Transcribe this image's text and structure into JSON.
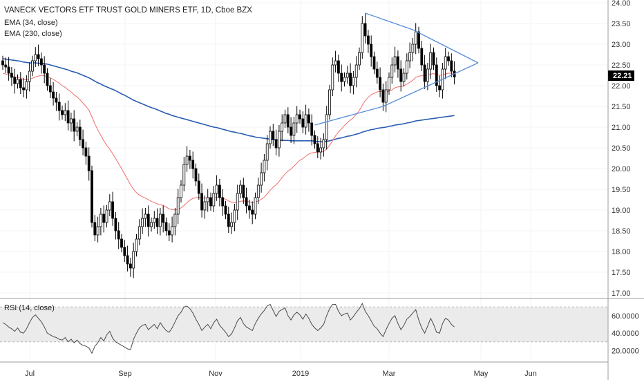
{
  "chart_title": "VANECK VECTORS ETF TRUST GOLD MINERS ETF, 1D, Cboe BZX",
  "legend": {
    "ema34": "EMA (34, close)",
    "ema230": "EMA (230, close)",
    "rsi": "RSI (14, close)"
  },
  "current_price": "22.21",
  "colors": {
    "candle": "#000000",
    "ema34": "#f26b6b",
    "ema230": "#2a5db0",
    "trendline": "#5b8fd6",
    "rsi_line": "#4a4a4a",
    "rsi_band": "#ebebeb",
    "grid": "#f0f3f7"
  },
  "chart_data": {
    "type": "candlestick",
    "x_labels": [
      "Jul",
      "Sep",
      "Nov",
      "2019",
      "Mar",
      "May",
      "Jun"
    ],
    "y_ticks": [
      "24.00",
      "23.50",
      "23.00",
      "22.50",
      "22.00",
      "21.50",
      "21.00",
      "20.50",
      "20.00",
      "19.50",
      "19.00",
      "18.50",
      "18.00",
      "17.50",
      "17.00"
    ],
    "ylim": [
      17.0,
      24.0
    ],
    "rsi_ticks": [
      "60.0000",
      "40.0000",
      "20.0000"
    ],
    "rsi_bands": [
      30,
      70
    ],
    "close": [
      22.5,
      22.45,
      22.3,
      22.2,
      22.05,
      22.15,
      21.95,
      21.9,
      22.1,
      22.35,
      22.6,
      22.75,
      22.65,
      22.5,
      22.3,
      22.0,
      21.85,
      21.7,
      21.6,
      21.4,
      21.3,
      21.4,
      21.1,
      21.2,
      20.9,
      21.0,
      20.7,
      20.5,
      20.3,
      19.95,
      18.7,
      18.4,
      18.6,
      18.9,
      18.7,
      19.0,
      19.2,
      18.8,
      18.5,
      18.3,
      18.1,
      17.9,
      17.7,
      17.6,
      18.0,
      18.3,
      18.6,
      18.8,
      18.9,
      18.6,
      18.7,
      18.8,
      18.6,
      18.9,
      18.7,
      18.5,
      18.4,
      18.6,
      18.9,
      19.3,
      19.6,
      20.1,
      20.3,
      20.2,
      20.0,
      19.7,
      19.4,
      19.0,
      19.2,
      19.3,
      19.1,
      19.4,
      19.6,
      19.3,
      19.1,
      18.9,
      18.6,
      18.7,
      19.0,
      19.4,
      19.6,
      19.3,
      19.1,
      19.0,
      18.9,
      19.3,
      19.6,
      19.9,
      20.2,
      20.6,
      20.9,
      20.7,
      20.5,
      20.9,
      21.1,
      21.3,
      21.0,
      20.8,
      21.1,
      21.3,
      21.2,
      21.0,
      21.3,
      21.1,
      20.8,
      20.6,
      20.4,
      20.5,
      20.7,
      21.3,
      21.9,
      22.5,
      22.6,
      22.3,
      22.1,
      22.2,
      22.3,
      22.0,
      22.2,
      22.5,
      22.8,
      23.5,
      23.2,
      23.0,
      22.7,
      22.4,
      22.2,
      21.9,
      21.6,
      21.9,
      22.2,
      22.5,
      22.7,
      22.4,
      22.1,
      22.3,
      22.6,
      22.8,
      23.0,
      23.3,
      22.9,
      22.5,
      22.1,
      22.4,
      22.8,
      22.5,
      22.0,
      21.9,
      22.4,
      22.7,
      22.6,
      22.35,
      22.21
    ],
    "ema34": [
      22.3,
      22.28,
      22.26,
      22.24,
      22.21,
      22.2,
      22.18,
      22.15,
      22.14,
      22.15,
      22.18,
      22.21,
      22.23,
      22.25,
      22.24,
      22.22,
      22.19,
      22.15,
      22.11,
      22.06,
      22.0,
      21.96,
      21.9,
      21.85,
      21.78,
      21.73,
      21.66,
      21.58,
      21.5,
      21.41,
      21.25,
      21.08,
      20.93,
      20.8,
      20.67,
      20.56,
      20.47,
      20.36,
      20.24,
      20.12,
      20.0,
      19.87,
      19.74,
      19.61,
      19.5,
      19.42,
      19.36,
      19.32,
      19.29,
      19.25,
      19.21,
      19.18,
      19.15,
      19.13,
      19.11,
      19.07,
      19.03,
      19.01,
      19.0,
      19.02,
      19.05,
      19.11,
      19.18,
      19.24,
      19.28,
      19.3,
      19.31,
      19.29,
      19.29,
      19.29,
      19.28,
      19.29,
      19.3,
      19.3,
      19.29,
      19.26,
      19.22,
      19.19,
      19.18,
      19.19,
      19.21,
      19.22,
      19.21,
      19.2,
      19.18,
      19.19,
      19.22,
      19.26,
      19.31,
      19.39,
      19.48,
      19.55,
      19.61,
      19.69,
      19.78,
      19.87,
      19.94,
      19.99,
      20.06,
      20.13,
      20.2,
      20.24,
      20.3,
      20.35,
      20.38,
      20.39,
      20.4,
      20.4,
      20.42,
      20.47,
      20.56,
      20.67,
      20.79,
      20.88,
      20.96,
      21.04,
      21.11,
      21.17,
      21.23,
      21.31,
      21.4,
      21.53,
      21.64,
      21.72,
      21.78,
      21.82,
      21.85,
      21.86,
      21.85,
      21.85,
      21.87,
      21.9,
      21.95,
      21.97,
      21.98,
      22.0,
      22.04,
      22.08,
      22.13,
      22.2,
      22.23,
      22.24,
      22.24,
      22.25,
      22.28,
      22.29,
      22.27,
      22.25,
      22.26,
      22.28,
      22.3,
      22.3,
      22.3
    ],
    "ema230": [
      22.65,
      22.64,
      22.63,
      22.62,
      22.61,
      22.6,
      22.59,
      22.57,
      22.56,
      22.55,
      22.55,
      22.55,
      22.54,
      22.54,
      22.53,
      22.52,
      22.5,
      22.48,
      22.46,
      22.44,
      22.42,
      22.4,
      22.38,
      22.35,
      22.33,
      22.31,
      22.28,
      22.25,
      22.22,
      22.19,
      22.15,
      22.11,
      22.07,
      22.04,
      22.0,
      21.97,
      21.94,
      21.91,
      21.88,
      21.84,
      21.8,
      21.77,
      21.73,
      21.69,
      21.65,
      21.62,
      21.59,
      21.56,
      21.53,
      21.5,
      21.47,
      21.45,
      21.42,
      21.39,
      21.36,
      21.33,
      21.31,
      21.28,
      21.26,
      21.24,
      21.22,
      21.2,
      21.18,
      21.16,
      21.14,
      21.12,
      21.1,
      21.08,
      21.06,
      21.04,
      21.02,
      21.0,
      20.99,
      20.97,
      20.95,
      20.93,
      20.91,
      20.89,
      20.88,
      20.86,
      20.85,
      20.83,
      20.81,
      20.79,
      20.78,
      20.76,
      20.75,
      20.74,
      20.73,
      20.72,
      20.71,
      20.7,
      20.69,
      20.69,
      20.68,
      20.68,
      20.68,
      20.67,
      20.67,
      20.67,
      20.67,
      20.67,
      20.67,
      20.67,
      20.67,
      20.66,
      20.65,
      20.65,
      20.65,
      20.66,
      20.67,
      20.69,
      20.71,
      20.73,
      20.74,
      20.76,
      20.78,
      20.79,
      20.81,
      20.83,
      20.85,
      20.88,
      20.9,
      20.92,
      20.94,
      20.95,
      20.97,
      20.98,
      20.99,
      21.0,
      21.02,
      21.03,
      21.05,
      21.06,
      21.07,
      21.08,
      21.1,
      21.11,
      21.13,
      21.15,
      21.16,
      21.17,
      21.18,
      21.19,
      21.2,
      21.21,
      21.22,
      21.23,
      21.24,
      21.25,
      21.26,
      21.27,
      21.28
    ],
    "rsi": [
      52,
      50,
      47,
      45,
      42,
      46,
      41,
      40,
      45,
      52,
      58,
      61,
      57,
      53,
      47,
      40,
      38,
      36,
      35,
      33,
      32,
      35,
      30,
      33,
      29,
      32,
      28,
      26,
      25,
      23,
      17,
      25,
      29,
      35,
      31,
      38,
      42,
      34,
      30,
      28,
      26,
      24,
      22,
      21,
      33,
      40,
      46,
      49,
      50,
      44,
      47,
      50,
      45,
      52,
      47,
      43,
      41,
      46,
      53,
      60,
      64,
      70,
      71,
      68,
      63,
      56,
      50,
      43,
      47,
      50,
      45,
      52,
      56,
      49,
      45,
      41,
      36,
      39,
      46,
      54,
      58,
      51,
      47,
      45,
      43,
      51,
      57,
      62,
      66,
      71,
      73,
      66,
      59,
      65,
      67,
      69,
      60,
      55,
      61,
      64,
      61,
      56,
      62,
      57,
      50,
      46,
      43,
      46,
      50,
      60,
      68,
      73,
      73,
      65,
      60,
      62,
      63,
      55,
      59,
      64,
      68,
      74,
      65,
      60,
      54,
      48,
      45,
      40,
      36,
      44,
      51,
      57,
      60,
      51,
      44,
      49,
      56,
      59,
      63,
      67,
      55,
      46,
      40,
      48,
      57,
      50,
      41,
      40,
      51,
      57,
      55,
      50,
      47
    ],
    "triangle": {
      "upper": [
        [
          122,
          23.75
        ],
        [
          138,
          23.35
        ],
        [
          160,
          22.55
        ]
      ],
      "lower": [
        [
          105,
          21.05
        ],
        [
          128,
          21.5
        ],
        [
          160,
          22.55
        ]
      ]
    }
  }
}
